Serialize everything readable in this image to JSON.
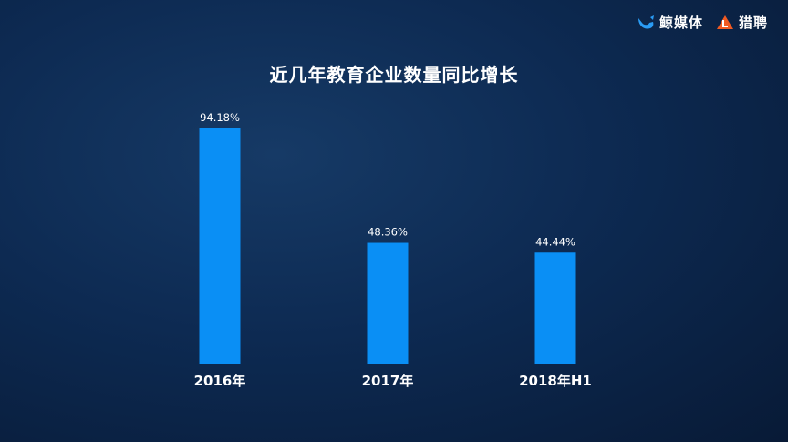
{
  "header": {
    "logo_jingmeiti": "鲸媒体",
    "logo_liepin": "猎聘"
  },
  "colors": {
    "bar": "#0a8ff5",
    "background": "#0d2a52",
    "jingmeiti_icon": "#2a9cf5",
    "liepin_icon": "#f05a22"
  },
  "icons": {
    "jingmeiti": "whale-logo-icon",
    "liepin": "liepin-logo-icon"
  },
  "chart_data": {
    "type": "bar",
    "title": "近几年教育企业数量同比增长",
    "categories": [
      "2016年",
      "2017年",
      "2018年H1"
    ],
    "values": [
      94.18,
      48.36,
      44.44
    ],
    "value_labels": [
      "94.18%",
      "48.36%",
      "44.44%"
    ],
    "ylim": [
      0,
      100
    ],
    "grid": false,
    "legend": "none"
  }
}
